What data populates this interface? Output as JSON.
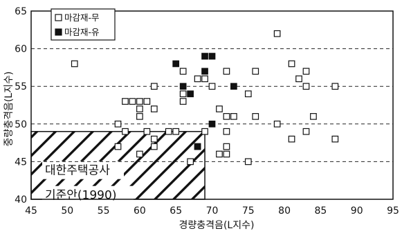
{
  "chart_data": {
    "type": "scatter",
    "xlabel": "경량충격음(L지수)",
    "ylabel": "중량충격음(L지수)",
    "xlim": [
      45,
      95
    ],
    "ylim": [
      40,
      65
    ],
    "x_ticks": [
      "45",
      "50",
      "55",
      "60",
      "65",
      "70",
      "75",
      "80",
      "85",
      "90",
      "95"
    ],
    "y_ticks": [
      "40",
      "45",
      "50",
      "55",
      "60",
      "65"
    ],
    "grid": "horizontal-dashed",
    "legend_position": "top-left",
    "series": [
      {
        "name": "마감재-무",
        "marker": "open-square",
        "points": [
          [
            51,
            58
          ],
          [
            57,
            50
          ],
          [
            57,
            47
          ],
          [
            58,
            53
          ],
          [
            58,
            49
          ],
          [
            59,
            53
          ],
          [
            60,
            53
          ],
          [
            60,
            52
          ],
          [
            60,
            51
          ],
          [
            60,
            46
          ],
          [
            61,
            53
          ],
          [
            61,
            49
          ],
          [
            62,
            55
          ],
          [
            62,
            52
          ],
          [
            62,
            48
          ],
          [
            62,
            47
          ],
          [
            64,
            49
          ],
          [
            65,
            49
          ],
          [
            66,
            57
          ],
          [
            66,
            54
          ],
          [
            66,
            53
          ],
          [
            67,
            45
          ],
          [
            68,
            56
          ],
          [
            68,
            47
          ],
          [
            69,
            56
          ],
          [
            69,
            49
          ],
          [
            70,
            55
          ],
          [
            71,
            52
          ],
          [
            71,
            46
          ],
          [
            72,
            57
          ],
          [
            72,
            51
          ],
          [
            72,
            49
          ],
          [
            72,
            47
          ],
          [
            72,
            46
          ],
          [
            73,
            51
          ],
          [
            75,
            54
          ],
          [
            75,
            45
          ],
          [
            76,
            57
          ],
          [
            76,
            51
          ],
          [
            79,
            62
          ],
          [
            79,
            50
          ],
          [
            81,
            58
          ],
          [
            81,
            48
          ],
          [
            82,
            56
          ],
          [
            83,
            57
          ],
          [
            83,
            55
          ],
          [
            83,
            49
          ],
          [
            84,
            51
          ],
          [
            87,
            55
          ],
          [
            87,
            48
          ]
        ]
      },
      {
        "name": "마감재-유",
        "marker": "filled-square",
        "points": [
          [
            65,
            58
          ],
          [
            66,
            55
          ],
          [
            67,
            54
          ],
          [
            68,
            47
          ],
          [
            69,
            59
          ],
          [
            69,
            57
          ],
          [
            70,
            59
          ],
          [
            70,
            50
          ],
          [
            73,
            55
          ]
        ]
      }
    ],
    "annotation": {
      "region_x": [
        45,
        69
      ],
      "region_y": [
        40,
        49
      ],
      "fill": "diagonal-hatch",
      "lines": [
        "대한주택공사",
        "기준안(1990)"
      ]
    }
  },
  "colors": {
    "ink": "#111111",
    "background": "#ffffff",
    "grid": "#222222"
  }
}
